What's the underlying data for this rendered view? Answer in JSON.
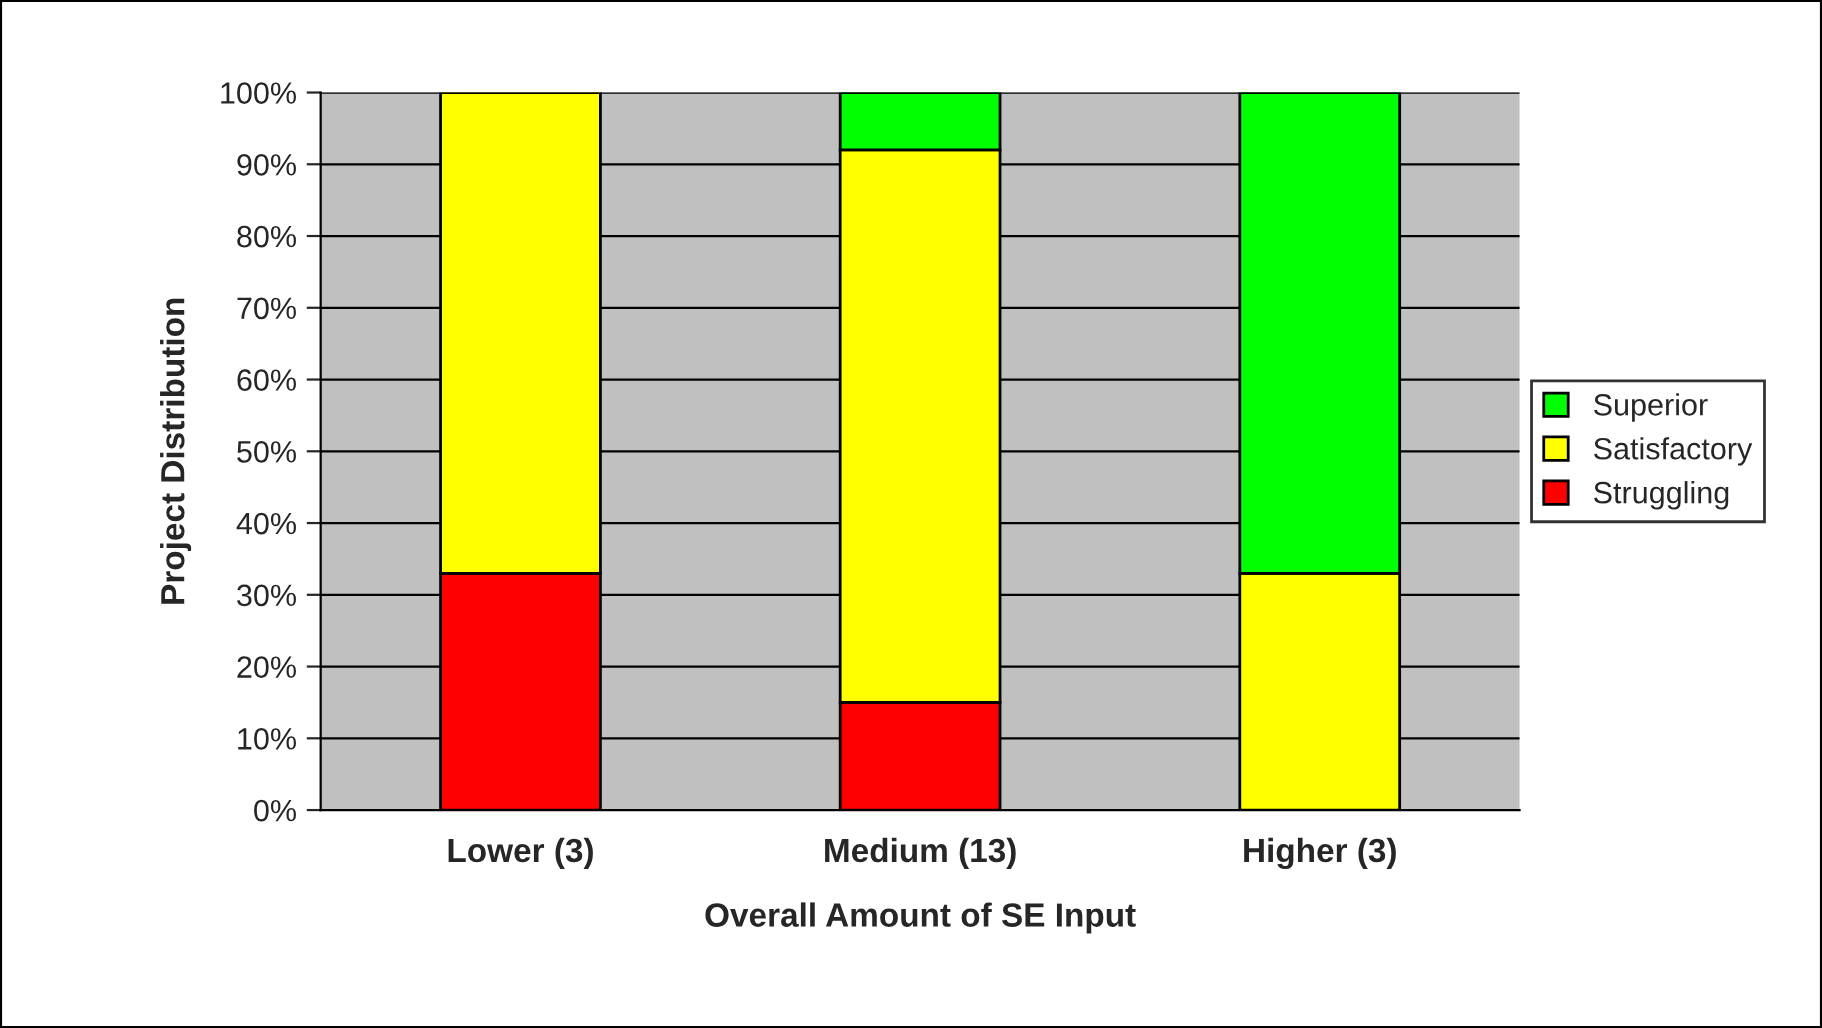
{
  "chart_data": {
    "type": "bar",
    "stacked": true,
    "xlabel": "Overall Amount of SE Input",
    "ylabel": "Project Distribution",
    "categories": [
      "Lower (3)",
      "Medium (13)",
      "Higher (3)"
    ],
    "series": [
      {
        "name": "Struggling",
        "color": "#ff0000",
        "values": [
          33,
          15,
          null
        ]
      },
      {
        "name": "Satisfactory",
        "color": "#ffff00",
        "values": [
          67,
          77,
          33
        ]
      },
      {
        "name": "Superior",
        "color": "#00ff00",
        "values": [
          null,
          8,
          67
        ]
      }
    ],
    "ylim": [
      0,
      100
    ],
    "yticks": [
      {
        "value": 0,
        "label": "0%"
      },
      {
        "value": 10,
        "label": "10%"
      },
      {
        "value": 20,
        "label": "20%"
      },
      {
        "value": 30,
        "label": "30%"
      },
      {
        "value": 40,
        "label": "40%"
      },
      {
        "value": 50,
        "label": "50%"
      },
      {
        "value": 60,
        "label": "60%"
      },
      {
        "value": 70,
        "label": "70%"
      },
      {
        "value": 80,
        "label": "80%"
      },
      {
        "value": 90,
        "label": "90%"
      },
      {
        "value": 100,
        "label": "100%"
      }
    ],
    "grid": "y",
    "legend": "right"
  }
}
